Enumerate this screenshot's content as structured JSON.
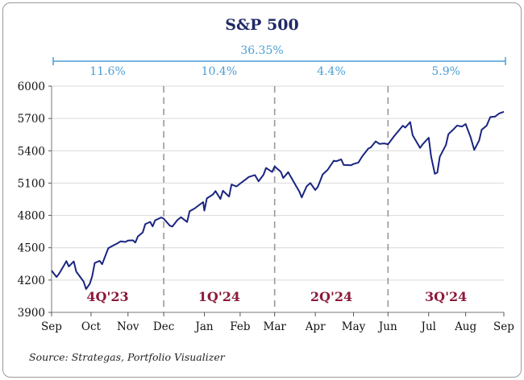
{
  "chart_data": {
    "type": "line",
    "title": "S&P 500",
    "xlabel": "",
    "ylabel": "",
    "ylim": [
      3900,
      6000
    ],
    "yticks": [
      3900,
      4200,
      4500,
      4800,
      5100,
      5400,
      5700,
      6000
    ],
    "x_tick_labels": [
      "Sep",
      "Oct",
      "Nov",
      "Dec",
      "Jan",
      "Feb",
      "Mar",
      "Apr",
      "May",
      "Jun",
      "Jul",
      "Aug",
      "Sep"
    ],
    "x_tick_dates": [
      "2023-09-29",
      "2023-10-31",
      "2023-11-30",
      "2023-12-29",
      "2024-01-31",
      "2024-02-29",
      "2024-03-28",
      "2024-04-30",
      "2024-05-31",
      "2024-06-28",
      "2024-07-31",
      "2024-08-30",
      "2024-09-30"
    ],
    "total_return_label": "36.35%",
    "quarters": [
      {
        "name": "4Q'23",
        "return_label": "11.6%"
      },
      {
        "name": "1Q'24",
        "return_label": "10.4%"
      },
      {
        "name": "2Q'24",
        "return_label": "4.4%"
      },
      {
        "name": "3Q'24",
        "return_label": "5.9%"
      }
    ],
    "quarter_dividers": [
      "2023-12-29",
      "2024-03-28",
      "2024-06-28"
    ],
    "grid": true,
    "line_color": "#1a2580",
    "series": [
      {
        "points": [
          [
            "2023-09-29",
            4288
          ],
          [
            "2023-10-03",
            4229
          ],
          [
            "2023-10-05",
            4258
          ],
          [
            "2023-10-09",
            4335
          ],
          [
            "2023-10-11",
            4376
          ],
          [
            "2023-10-13",
            4327
          ],
          [
            "2023-10-17",
            4373
          ],
          [
            "2023-10-19",
            4278
          ],
          [
            "2023-10-23",
            4217
          ],
          [
            "2023-10-25",
            4186
          ],
          [
            "2023-10-27",
            4117
          ],
          [
            "2023-10-30",
            4166
          ],
          [
            "2023-11-01",
            4237
          ],
          [
            "2023-11-03",
            4358
          ],
          [
            "2023-11-07",
            4378
          ],
          [
            "2023-11-09",
            4347
          ],
          [
            "2023-11-14",
            4495
          ],
          [
            "2023-11-17",
            4514
          ],
          [
            "2023-11-21",
            4538
          ],
          [
            "2023-11-24",
            4559
          ],
          [
            "2023-11-28",
            4554
          ],
          [
            "2023-11-30",
            4567
          ],
          [
            "2023-12-04",
            4569
          ],
          [
            "2023-12-06",
            4549
          ],
          [
            "2023-12-08",
            4604
          ],
          [
            "2023-12-12",
            4643
          ],
          [
            "2023-12-14",
            4719
          ],
          [
            "2023-12-18",
            4740
          ],
          [
            "2023-12-20",
            4698
          ],
          [
            "2023-12-22",
            4754
          ],
          [
            "2023-12-27",
            4781
          ],
          [
            "2023-12-29",
            4770
          ],
          [
            "2024-01-03",
            4705
          ],
          [
            "2024-01-05",
            4697
          ],
          [
            "2024-01-09",
            4756
          ],
          [
            "2024-01-12",
            4783
          ],
          [
            "2024-01-17",
            4739
          ],
          [
            "2024-01-19",
            4839
          ],
          [
            "2024-01-23",
            4864
          ],
          [
            "2024-01-26",
            4890
          ],
          [
            "2024-01-30",
            4924
          ],
          [
            "2024-01-31",
            4845
          ],
          [
            "2024-02-02",
            4958
          ],
          [
            "2024-02-07",
            4995
          ],
          [
            "2024-02-09",
            5026
          ],
          [
            "2024-02-13",
            4953
          ],
          [
            "2024-02-15",
            5029
          ],
          [
            "2024-02-20",
            4975
          ],
          [
            "2024-02-22",
            5087
          ],
          [
            "2024-02-26",
            5069
          ],
          [
            "2024-02-29",
            5096
          ],
          [
            "2024-03-04",
            5130
          ],
          [
            "2024-03-07",
            5157
          ],
          [
            "2024-03-12",
            5175
          ],
          [
            "2024-03-15",
            5117
          ],
          [
            "2024-03-19",
            5178
          ],
          [
            "2024-03-21",
            5241
          ],
          [
            "2024-03-26",
            5203
          ],
          [
            "2024-03-28",
            5254
          ],
          [
            "2024-04-02",
            5205
          ],
          [
            "2024-04-04",
            5147
          ],
          [
            "2024-04-08",
            5202
          ],
          [
            "2024-04-10",
            5160
          ],
          [
            "2024-04-15",
            5061
          ],
          [
            "2024-04-17",
            5022
          ],
          [
            "2024-04-19",
            4967
          ],
          [
            "2024-04-23",
            5070
          ],
          [
            "2024-04-26",
            5100
          ],
          [
            "2024-04-30",
            5036
          ],
          [
            "2024-05-02",
            5064
          ],
          [
            "2024-05-06",
            5181
          ],
          [
            "2024-05-10",
            5223
          ],
          [
            "2024-05-15",
            5308
          ],
          [
            "2024-05-17",
            5303
          ],
          [
            "2024-05-21",
            5321
          ],
          [
            "2024-05-23",
            5268
          ],
          [
            "2024-05-29",
            5266
          ],
          [
            "2024-05-31",
            5277
          ],
          [
            "2024-06-04",
            5291
          ],
          [
            "2024-06-07",
            5347
          ],
          [
            "2024-06-12",
            5421
          ],
          [
            "2024-06-14",
            5431
          ],
          [
            "2024-06-18",
            5487
          ],
          [
            "2024-06-21",
            5464
          ],
          [
            "2024-06-25",
            5469
          ],
          [
            "2024-06-28",
            5460
          ],
          [
            "2024-07-03",
            5537
          ],
          [
            "2024-07-10",
            5633
          ],
          [
            "2024-07-12",
            5615
          ],
          [
            "2024-07-16",
            5667
          ],
          [
            "2024-07-18",
            5544
          ],
          [
            "2024-07-24",
            5427
          ],
          [
            "2024-07-26",
            5459
          ],
          [
            "2024-07-31",
            5522
          ],
          [
            "2024-08-02",
            5346
          ],
          [
            "2024-08-05",
            5186
          ],
          [
            "2024-08-07",
            5199
          ],
          [
            "2024-08-09",
            5344
          ],
          [
            "2024-08-14",
            5455
          ],
          [
            "2024-08-16",
            5554
          ],
          [
            "2024-08-20",
            5597
          ],
          [
            "2024-08-23",
            5634
          ],
          [
            "2024-08-27",
            5625
          ],
          [
            "2024-08-30",
            5648
          ],
          [
            "2024-09-03",
            5528
          ],
          [
            "2024-09-06",
            5408
          ],
          [
            "2024-09-10",
            5496
          ],
          [
            "2024-09-12",
            5595
          ],
          [
            "2024-09-16",
            5633
          ],
          [
            "2024-09-19",
            5713
          ],
          [
            "2024-09-23",
            5718
          ],
          [
            "2024-09-26",
            5745
          ],
          [
            "2024-09-30",
            5762
          ]
        ]
      }
    ]
  },
  "footer": {
    "source": "Source: Strategas, Portfolio Visualizer"
  }
}
